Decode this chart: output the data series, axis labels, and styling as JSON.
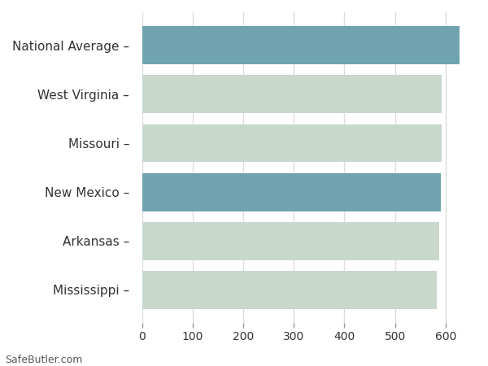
{
  "categories": [
    "Mississippi",
    "Arkansas",
    "New Mexico",
    "Missouri",
    "West Virginia",
    "National Average"
  ],
  "values": [
    583,
    587,
    591,
    592,
    592,
    628
  ],
  "bar_colors": [
    "#c8d8cc",
    "#c8d8cc",
    "#6fa3b0",
    "#c8d8cc",
    "#c8d8cc",
    "#6fa3b0"
  ],
  "background_color": "#ffffff",
  "plot_bg_color": "#ffffff",
  "xlim": [
    0,
    660
  ],
  "xticks": [
    0,
    100,
    200,
    300,
    400,
    500,
    600
  ],
  "grid_color": "#dddddd",
  "footer_text": "SafeButler.com",
  "bar_height": 0.78,
  "tick_label_color": "#333333",
  "tick_color": "#aaaaaa",
  "label_fontsize": 11,
  "tick_fontsize": 10
}
